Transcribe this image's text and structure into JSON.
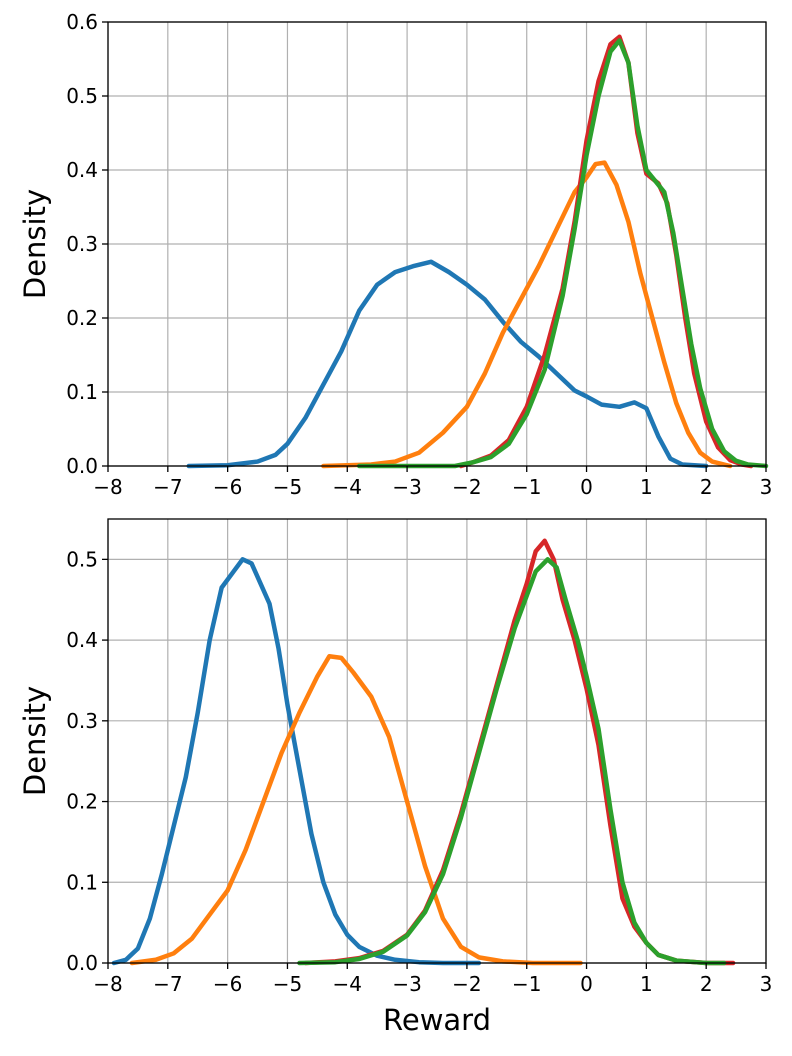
{
  "chart_data": [
    {
      "type": "line",
      "title": "",
      "xlabel": "",
      "ylabel": "Density",
      "xlim": [
        -8,
        3
      ],
      "ylim": [
        0,
        0.6
      ],
      "xticks": [
        -8,
        -7,
        -6,
        -5,
        -4,
        -3,
        -2,
        -1,
        0,
        1,
        2,
        3
      ],
      "xtick_labels": [
        "−8",
        "−7",
        "−6",
        "−5",
        "−4",
        "−3",
        "−2",
        "−1",
        "0",
        "1",
        "2",
        "3"
      ],
      "yticks": [
        0,
        0.1,
        0.2,
        0.3,
        0.4,
        0.5,
        0.6
      ],
      "ytick_labels": [
        "0.0",
        "0.1",
        "0.2",
        "0.3",
        "0.4",
        "0.5",
        "0.6"
      ],
      "grid": true,
      "series": [
        {
          "color": "#1f77b4",
          "points": [
            [
              -6.65,
              0.0
            ],
            [
              -6.0,
              0.001
            ],
            [
              -5.5,
              0.006
            ],
            [
              -5.2,
              0.015
            ],
            [
              -5.0,
              0.03
            ],
            [
              -4.7,
              0.065
            ],
            [
              -4.4,
              0.11
            ],
            [
              -4.1,
              0.155
            ],
            [
              -3.8,
              0.21
            ],
            [
              -3.5,
              0.245
            ],
            [
              -3.2,
              0.262
            ],
            [
              -2.9,
              0.27
            ],
            [
              -2.6,
              0.276
            ],
            [
              -2.3,
              0.262
            ],
            [
              -2.0,
              0.245
            ],
            [
              -1.7,
              0.225
            ],
            [
              -1.4,
              0.195
            ],
            [
              -1.1,
              0.168
            ],
            [
              -0.8,
              0.148
            ],
            [
              -0.5,
              0.125
            ],
            [
              -0.2,
              0.102
            ],
            [
              0.0,
              0.094
            ],
            [
              0.25,
              0.083
            ],
            [
              0.55,
              0.08
            ],
            [
              0.8,
              0.086
            ],
            [
              1.0,
              0.078
            ],
            [
              1.2,
              0.04
            ],
            [
              1.4,
              0.01
            ],
            [
              1.6,
              0.002
            ],
            [
              2.0,
              0.0
            ]
          ]
        },
        {
          "color": "#ff7f0e",
          "points": [
            [
              -4.4,
              0.0
            ],
            [
              -3.6,
              0.002
            ],
            [
              -3.2,
              0.006
            ],
            [
              -2.8,
              0.018
            ],
            [
              -2.4,
              0.045
            ],
            [
              -2.0,
              0.08
            ],
            [
              -1.7,
              0.125
            ],
            [
              -1.4,
              0.18
            ],
            [
              -1.1,
              0.225
            ],
            [
              -0.8,
              0.27
            ],
            [
              -0.5,
              0.32
            ],
            [
              -0.2,
              0.37
            ],
            [
              0.0,
              0.39
            ],
            [
              0.15,
              0.408
            ],
            [
              0.3,
              0.41
            ],
            [
              0.5,
              0.38
            ],
            [
              0.7,
              0.33
            ],
            [
              0.9,
              0.26
            ],
            [
              1.1,
              0.2
            ],
            [
              1.3,
              0.14
            ],
            [
              1.5,
              0.085
            ],
            [
              1.7,
              0.045
            ],
            [
              1.9,
              0.018
            ],
            [
              2.1,
              0.006
            ],
            [
              2.4,
              0.0
            ]
          ]
        },
        {
          "color": "#d62728",
          "points": [
            [
              -2.1,
              0.0
            ],
            [
              -1.9,
              0.005
            ],
            [
              -1.6,
              0.014
            ],
            [
              -1.3,
              0.035
            ],
            [
              -1.0,
              0.08
            ],
            [
              -0.7,
              0.15
            ],
            [
              -0.4,
              0.24
            ],
            [
              -0.2,
              0.33
            ],
            [
              0.0,
              0.44
            ],
            [
              0.2,
              0.52
            ],
            [
              0.4,
              0.57
            ],
            [
              0.55,
              0.58
            ],
            [
              0.7,
              0.545
            ],
            [
              0.85,
              0.45
            ],
            [
              1.0,
              0.395
            ],
            [
              1.2,
              0.382
            ],
            [
              1.35,
              0.355
            ],
            [
              1.5,
              0.285
            ],
            [
              1.65,
              0.2
            ],
            [
              1.8,
              0.125
            ],
            [
              2.0,
              0.06
            ],
            [
              2.2,
              0.025
            ],
            [
              2.4,
              0.008
            ],
            [
              2.6,
              0.002
            ],
            [
              2.75,
              0.0
            ]
          ]
        },
        {
          "color": "#2ca02c",
          "points": [
            [
              -3.8,
              0.0
            ],
            [
              -2.2,
              0.0
            ],
            [
              -1.9,
              0.005
            ],
            [
              -1.6,
              0.012
            ],
            [
              -1.3,
              0.03
            ],
            [
              -1.0,
              0.07
            ],
            [
              -0.7,
              0.13
            ],
            [
              -0.4,
              0.23
            ],
            [
              -0.2,
              0.32
            ],
            [
              0.0,
              0.42
            ],
            [
              0.2,
              0.5
            ],
            [
              0.4,
              0.56
            ],
            [
              0.55,
              0.575
            ],
            [
              0.7,
              0.545
            ],
            [
              0.85,
              0.46
            ],
            [
              1.0,
              0.4
            ],
            [
              1.15,
              0.385
            ],
            [
              1.3,
              0.37
            ],
            [
              1.45,
              0.315
            ],
            [
              1.6,
              0.24
            ],
            [
              1.75,
              0.165
            ],
            [
              1.9,
              0.105
            ],
            [
              2.1,
              0.05
            ],
            [
              2.3,
              0.02
            ],
            [
              2.5,
              0.007
            ],
            [
              2.7,
              0.002
            ],
            [
              3.0,
              0.0
            ]
          ]
        }
      ]
    },
    {
      "type": "line",
      "title": "",
      "xlabel": "Reward",
      "ylabel": "Density",
      "xlim": [
        -8,
        3
      ],
      "ylim": [
        0,
        0.55
      ],
      "xticks": [
        -8,
        -7,
        -6,
        -5,
        -4,
        -3,
        -2,
        -1,
        0,
        1,
        2,
        3
      ],
      "xtick_labels": [
        "−8",
        "−7",
        "−6",
        "−5",
        "−4",
        "−3",
        "−2",
        "−1",
        "0",
        "1",
        "2",
        "3"
      ],
      "yticks": [
        0,
        0.1,
        0.2,
        0.3,
        0.4,
        0.5
      ],
      "ytick_labels": [
        "0.0",
        "0.1",
        "0.2",
        "0.3",
        "0.4",
        "0.5"
      ],
      "grid": true,
      "series": [
        {
          "color": "#1f77b4",
          "points": [
            [
              -7.9,
              0.0
            ],
            [
              -7.7,
              0.004
            ],
            [
              -7.5,
              0.018
            ],
            [
              -7.3,
              0.055
            ],
            [
              -7.1,
              0.11
            ],
            [
              -6.9,
              0.17
            ],
            [
              -6.7,
              0.23
            ],
            [
              -6.5,
              0.31
            ],
            [
              -6.3,
              0.4
            ],
            [
              -6.1,
              0.465
            ],
            [
              -5.9,
              0.485
            ],
            [
              -5.75,
              0.5
            ],
            [
              -5.6,
              0.495
            ],
            [
              -5.45,
              0.47
            ],
            [
              -5.3,
              0.445
            ],
            [
              -5.15,
              0.39
            ],
            [
              -5.0,
              0.32
            ],
            [
              -4.8,
              0.24
            ],
            [
              -4.6,
              0.16
            ],
            [
              -4.4,
              0.1
            ],
            [
              -4.2,
              0.06
            ],
            [
              -4.0,
              0.035
            ],
            [
              -3.8,
              0.02
            ],
            [
              -3.5,
              0.009
            ],
            [
              -3.2,
              0.004
            ],
            [
              -2.8,
              0.001
            ],
            [
              -2.4,
              0.0
            ],
            [
              -1.8,
              0.0
            ]
          ]
        },
        {
          "color": "#ff7f0e",
          "points": [
            [
              -7.6,
              0.0
            ],
            [
              -7.2,
              0.004
            ],
            [
              -6.9,
              0.012
            ],
            [
              -6.6,
              0.03
            ],
            [
              -6.3,
              0.06
            ],
            [
              -6.0,
              0.09
            ],
            [
              -5.7,
              0.14
            ],
            [
              -5.4,
              0.2
            ],
            [
              -5.1,
              0.26
            ],
            [
              -4.8,
              0.31
            ],
            [
              -4.5,
              0.355
            ],
            [
              -4.3,
              0.38
            ],
            [
              -4.1,
              0.378
            ],
            [
              -3.9,
              0.36
            ],
            [
              -3.6,
              0.33
            ],
            [
              -3.3,
              0.28
            ],
            [
              -3.0,
              0.2
            ],
            [
              -2.7,
              0.12
            ],
            [
              -2.4,
              0.055
            ],
            [
              -2.1,
              0.02
            ],
            [
              -1.8,
              0.007
            ],
            [
              -1.4,
              0.002
            ],
            [
              -0.9,
              0.0
            ],
            [
              -0.1,
              0.0
            ]
          ]
        },
        {
          "color": "#d62728",
          "points": [
            [
              -4.7,
              0.0
            ],
            [
              -4.2,
              0.002
            ],
            [
              -3.8,
              0.006
            ],
            [
              -3.4,
              0.015
            ],
            [
              -3.0,
              0.035
            ],
            [
              -2.7,
              0.065
            ],
            [
              -2.4,
              0.115
            ],
            [
              -2.1,
              0.185
            ],
            [
              -1.8,
              0.265
            ],
            [
              -1.5,
              0.345
            ],
            [
              -1.2,
              0.425
            ],
            [
              -1.0,
              0.47
            ],
            [
              -0.85,
              0.51
            ],
            [
              -0.7,
              0.523
            ],
            [
              -0.55,
              0.5
            ],
            [
              -0.4,
              0.45
            ],
            [
              -0.2,
              0.4
            ],
            [
              0.0,
              0.34
            ],
            [
              0.2,
              0.27
            ],
            [
              0.4,
              0.17
            ],
            [
              0.6,
              0.08
            ],
            [
              0.8,
              0.045
            ],
            [
              1.0,
              0.025
            ],
            [
              1.2,
              0.01
            ],
            [
              1.5,
              0.003
            ],
            [
              2.0,
              0.0
            ],
            [
              2.45,
              0.0
            ]
          ]
        },
        {
          "color": "#2ca02c",
          "points": [
            [
              -4.8,
              0.0
            ],
            [
              -4.2,
              0.001
            ],
            [
              -3.8,
              0.005
            ],
            [
              -3.4,
              0.014
            ],
            [
              -3.0,
              0.034
            ],
            [
              -2.7,
              0.063
            ],
            [
              -2.4,
              0.11
            ],
            [
              -2.1,
              0.18
            ],
            [
              -1.8,
              0.26
            ],
            [
              -1.5,
              0.34
            ],
            [
              -1.2,
              0.415
            ],
            [
              -1.0,
              0.455
            ],
            [
              -0.85,
              0.485
            ],
            [
              -0.65,
              0.5
            ],
            [
              -0.5,
              0.49
            ],
            [
              -0.35,
              0.45
            ],
            [
              -0.15,
              0.4
            ],
            [
              0.0,
              0.355
            ],
            [
              0.2,
              0.29
            ],
            [
              0.4,
              0.19
            ],
            [
              0.6,
              0.1
            ],
            [
              0.8,
              0.05
            ],
            [
              1.0,
              0.025
            ],
            [
              1.2,
              0.01
            ],
            [
              1.5,
              0.003
            ],
            [
              2.0,
              0.0
            ],
            [
              2.3,
              0.0
            ]
          ]
        }
      ]
    }
  ]
}
